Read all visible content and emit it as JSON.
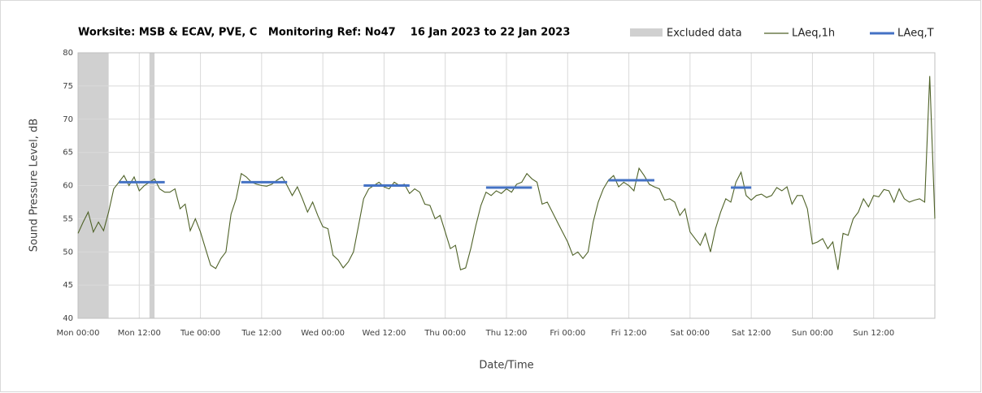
{
  "chart_data": {
    "type": "line",
    "title": "Worksite: MSB & ECAV, PVE, C   Monitoring Ref: No47    16 Jan 2023 to 22 Jan 2023",
    "x_label": "Date/Time",
    "y_label": "Sound Pressure Level, dB",
    "xlim": [
      0,
      168
    ],
    "ylim": [
      40,
      80
    ],
    "xticks": [
      {
        "value": 0,
        "label": "Mon 00:00"
      },
      {
        "value": 12,
        "label": "Mon 12:00"
      },
      {
        "value": 24,
        "label": "Tue 00:00"
      },
      {
        "value": 36,
        "label": "Tue 12:00"
      },
      {
        "value": 48,
        "label": "Wed 00:00"
      },
      {
        "value": 60,
        "label": "Wed 12:00"
      },
      {
        "value": 72,
        "label": "Thu 00:00"
      },
      {
        "value": 84,
        "label": "Thu 12:00"
      },
      {
        "value": 96,
        "label": "Fri 00:00"
      },
      {
        "value": 108,
        "label": "Fri 12:00"
      },
      {
        "value": 120,
        "label": "Sat 00:00"
      },
      {
        "value": 132,
        "label": "Sat 12:00"
      },
      {
        "value": 144,
        "label": "Sun 00:00"
      },
      {
        "value": 156,
        "label": "Sun 12:00"
      }
    ],
    "yticks": [
      40,
      45,
      50,
      55,
      60,
      65,
      70,
      75,
      80
    ],
    "grid": true,
    "excluded": {
      "name": "Excluded data",
      "color": "#d0d0d0",
      "ranges": [
        [
          0,
          6
        ],
        [
          14,
          15
        ]
      ]
    },
    "series": [
      {
        "name": "LAeq,1h",
        "color": "#4f6228",
        "x": [
          0,
          1,
          2,
          3,
          4,
          5,
          6,
          7,
          8,
          9,
          10,
          11,
          12,
          13,
          14,
          15,
          16,
          17,
          18,
          19,
          20,
          21,
          22,
          23,
          24,
          25,
          26,
          27,
          28,
          29,
          30,
          31,
          32,
          33,
          34,
          35,
          36,
          37,
          38,
          39,
          40,
          41,
          42,
          43,
          44,
          45,
          46,
          47,
          48,
          49,
          50,
          51,
          52,
          53,
          54,
          55,
          56,
          57,
          58,
          59,
          60,
          61,
          62,
          63,
          64,
          65,
          66,
          67,
          68,
          69,
          70,
          71,
          72,
          73,
          74,
          75,
          76,
          77,
          78,
          79,
          80,
          81,
          82,
          83,
          84,
          85,
          86,
          87,
          88,
          89,
          90,
          91,
          92,
          93,
          94,
          95,
          96,
          97,
          98,
          99,
          100,
          101,
          102,
          103,
          104,
          105,
          106,
          107,
          108,
          109,
          110,
          111,
          112,
          113,
          114,
          115,
          116,
          117,
          118,
          119,
          120,
          121,
          122,
          123,
          124,
          125,
          126,
          127,
          128,
          129,
          130,
          131,
          132,
          133,
          134,
          135,
          136,
          137,
          138,
          139,
          140,
          141,
          142,
          143,
          144,
          145,
          146,
          147,
          148,
          149,
          150,
          151,
          152,
          153,
          154,
          155,
          156,
          157,
          158,
          159,
          160,
          161,
          162,
          163,
          164,
          165,
          166,
          167,
          168
        ],
        "values": [
          52.8,
          54.5,
          56,
          53,
          54.5,
          53.2,
          56,
          59.5,
          60.5,
          61.5,
          60,
          61.3,
          59.2,
          60,
          60.5,
          61,
          59.5,
          59,
          59,
          59.5,
          56.5,
          57.2,
          53.2,
          55,
          53,
          50.5,
          48,
          47.5,
          49,
          50,
          55.7,
          58,
          61.8,
          61.3,
          60.5,
          60.2,
          60,
          59.9,
          60.2,
          60.8,
          61.3,
          60,
          58.5,
          59.8,
          58,
          56,
          57.5,
          55.5,
          53.8,
          53.5,
          49.5,
          48.8,
          47.6,
          48.5,
          50,
          54,
          58,
          59.5,
          60,
          60.5,
          59.8,
          59.5,
          60.5,
          60,
          60.2,
          58.8,
          59.5,
          59,
          57.2,
          57,
          55,
          55.5,
          53,
          50.5,
          51,
          47.3,
          47.6,
          50.5,
          54,
          57,
          59,
          58.5,
          59.2,
          58.8,
          59.5,
          59,
          60.2,
          60.5,
          61.8,
          61,
          60.5,
          57.2,
          57.5,
          56,
          54.5,
          53,
          51.5,
          49.5,
          50,
          49,
          50,
          54.5,
          57.5,
          59.5,
          60.8,
          61.5,
          59.8,
          60.5,
          60,
          59.2,
          62.6,
          61.5,
          60.2,
          59.8,
          59.5,
          57.8,
          58,
          57.5,
          55.5,
          56.5,
          53,
          52,
          51,
          52.8,
          50,
          53.5,
          56,
          58,
          57.5,
          60.5,
          62,
          58.5,
          57.8,
          58.5,
          58.7,
          58.2,
          58.5,
          59.7,
          59.2,
          59.8,
          57.2,
          58.5,
          58.5,
          56.5,
          51.2,
          51.5,
          52,
          50.5,
          51.5,
          47.3,
          52.8,
          52.5,
          55,
          56,
          58,
          56.8,
          58.5,
          58.3,
          59.4,
          59.2,
          57.5,
          59.5,
          58,
          57.5,
          57.8,
          58,
          57.5,
          76.5,
          55
        ]
      },
      {
        "name": "LAeq,T",
        "color": "#4472c4",
        "segments": [
          {
            "x": [
              8,
              17
            ],
            "value": 60.5
          },
          {
            "x": [
              32,
              41
            ],
            "value": 60.5
          },
          {
            "x": [
              56,
              65
            ],
            "value": 60
          },
          {
            "x": [
              80,
              89
            ],
            "value": 59.7
          },
          {
            "x": [
              104,
              113
            ],
            "value": 60.8
          },
          {
            "x": [
              128,
              132
            ],
            "value": 59.7
          }
        ]
      }
    ]
  }
}
